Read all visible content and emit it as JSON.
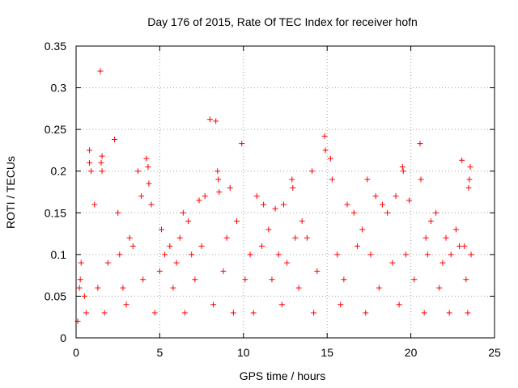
{
  "chart_data": {
    "type": "scatter",
    "title": "Day 176 of 2015, Rate Of TEC Index for receiver hofn",
    "xlabel": "GPS time / hours",
    "ylabel": "ROTI / TECUs",
    "xlim": [
      0,
      25
    ],
    "ylim": [
      0,
      0.35
    ],
    "xticks": [
      "0",
      "5",
      "10",
      "15",
      "20",
      "25"
    ],
    "yticks": [
      "0",
      "0.05",
      "0.1",
      "0.15",
      "0.2",
      "0.25",
      "0.3",
      "0.35"
    ],
    "grid": true,
    "marker": "+",
    "color": "#ff0000",
    "series": [
      {
        "x": [
          1.45,
          2.3,
          1.55,
          8.0,
          8.35,
          9.9,
          14.85,
          14.9,
          20.55,
          23.05,
          0.8,
          0.8,
          0.9,
          1.5,
          1.55,
          4.2,
          4.3,
          4.35,
          8.45,
          8.5,
          8.55,
          12.9,
          12.95,
          14.1,
          15.2,
          15.3,
          17.4,
          19.5,
          19.55,
          20.6,
          23.45,
          23.5,
          23.55,
          3.7,
          3.9,
          4.5,
          6.4,
          6.7,
          7.35,
          7.7,
          9.2,
          10.8,
          11.2,
          11.9,
          12.4,
          13.5,
          16.2,
          16.6,
          17.9,
          18.3,
          18.6,
          19.1,
          19.9,
          21.2,
          21.5,
          22.1,
          22.7,
          1.1,
          2.5,
          3.2,
          5.1,
          5.6,
          6.2,
          9.6,
          11.5,
          13.1,
          17.1,
          20.9,
          22.9,
          0.2,
          0.25,
          0.3,
          1.9,
          2.6,
          3.4,
          5.0,
          5.3,
          6.0,
          6.9,
          7.5,
          9.0,
          10.4,
          11.1,
          12.1,
          12.6,
          13.8,
          15.6,
          16.8,
          17.6,
          18.9,
          19.7,
          21.0,
          21.9,
          22.4,
          23.2,
          23.6,
          0.5,
          1.3,
          2.8,
          4.0,
          5.8,
          7.1,
          8.8,
          10.1,
          11.7,
          13.3,
          14.4,
          16.0,
          18.1,
          20.2,
          21.7,
          23.3,
          0.1,
          0.6,
          1.7,
          3.0,
          4.7,
          6.5,
          8.2,
          9.4,
          10.6,
          12.3,
          14.2,
          15.8,
          17.3,
          19.3,
          20.8,
          22.3,
          23.4
        ],
        "y": [
          0.32,
          0.238,
          0.218,
          0.262,
          0.26,
          0.233,
          0.242,
          0.225,
          0.233,
          0.213,
          0.225,
          0.21,
          0.2,
          0.21,
          0.2,
          0.215,
          0.205,
          0.185,
          0.2,
          0.19,
          0.175,
          0.19,
          0.18,
          0.2,
          0.215,
          0.19,
          0.19,
          0.205,
          0.2,
          0.19,
          0.18,
          0.19,
          0.205,
          0.2,
          0.17,
          0.16,
          0.15,
          0.14,
          0.165,
          0.17,
          0.18,
          0.17,
          0.16,
          0.155,
          0.16,
          0.14,
          0.16,
          0.15,
          0.17,
          0.16,
          0.15,
          0.17,
          0.165,
          0.14,
          0.15,
          0.12,
          0.13,
          0.16,
          0.15,
          0.12,
          0.13,
          0.11,
          0.12,
          0.14,
          0.13,
          0.12,
          0.13,
          0.12,
          0.11,
          0.06,
          0.07,
          0.09,
          0.09,
          0.1,
          0.11,
          0.08,
          0.1,
          0.09,
          0.1,
          0.11,
          0.12,
          0.1,
          0.11,
          0.1,
          0.09,
          0.12,
          0.1,
          0.11,
          0.1,
          0.09,
          0.1,
          0.1,
          0.09,
          0.1,
          0.11,
          0.1,
          0.05,
          0.06,
          0.06,
          0.07,
          0.06,
          0.07,
          0.08,
          0.07,
          0.07,
          0.06,
          0.08,
          0.07,
          0.06,
          0.07,
          0.06,
          0.07,
          0.02,
          0.03,
          0.03,
          0.04,
          0.03,
          0.03,
          0.04,
          0.03,
          0.03,
          0.04,
          0.03,
          0.04,
          0.03,
          0.04,
          0.03,
          0.03,
          0.03
        ]
      }
    ]
  }
}
